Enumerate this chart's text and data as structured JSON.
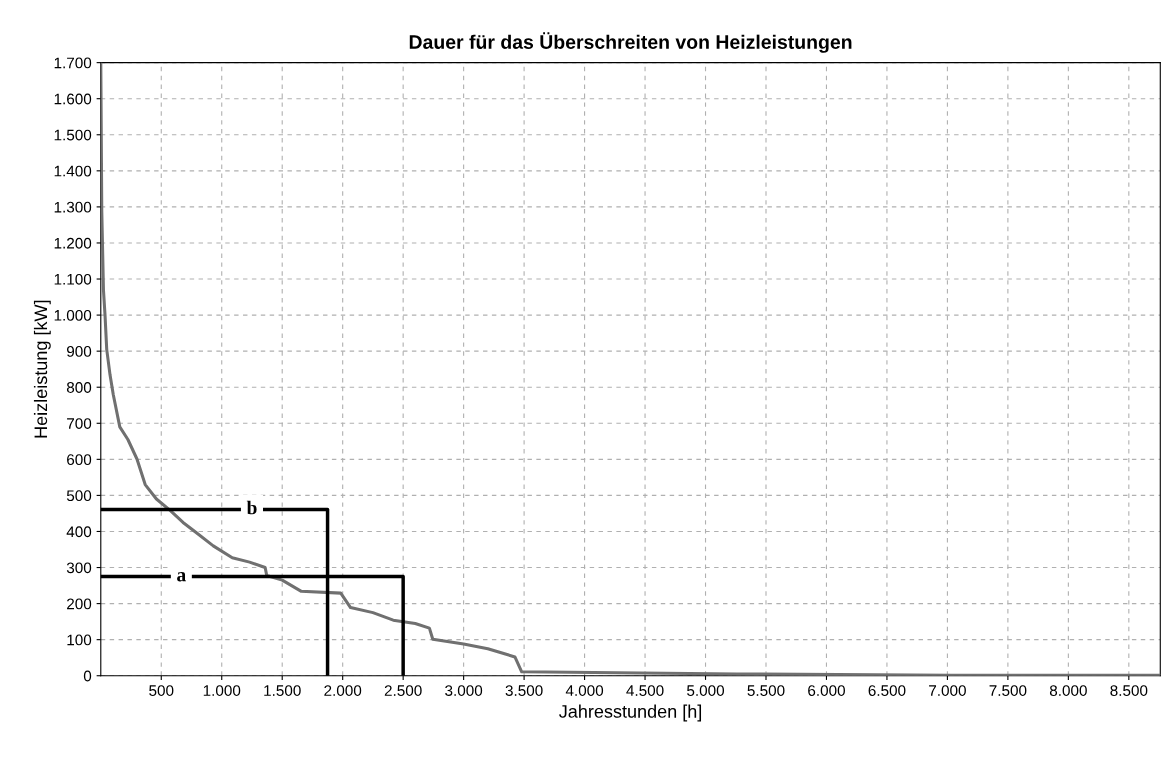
{
  "chart_data": {
    "type": "line",
    "title": "Dauer für das Überschreiten von Heizleistungen",
    "xlabel": "Jahresstunden [h]",
    "ylabel": "Heizleistung [kW]",
    "series": [
      {
        "color": "#707070",
        "x": [
          0,
          8,
          22,
          35,
          49,
          76,
          103,
          157,
          224,
          299,
          367,
          460,
          571,
          680,
          788,
          930,
          1087,
          1230,
          1359,
          1372,
          1500,
          1658,
          1984,
          2065,
          2250,
          2418,
          2600,
          2717,
          2745,
          3000,
          3200,
          3424,
          3480,
          5260,
          7030,
          8760
        ],
        "values": [
          1700,
          1290,
          1070,
          1000,
          905,
          835,
          780,
          690,
          655,
          601,
          530,
          490,
          459,
          425,
          397,
          360,
          327,
          315,
          300,
          278,
          265,
          234,
          229,
          189,
          175,
          154,
          145,
          132,
          101,
          88,
          75,
          52,
          11,
          5,
          1,
          1
        ]
      },
      {
        "color": "#000000",
        "x": [
          0,
          2500,
          2500
        ],
        "values": [
          275,
          275,
          0
        ]
      },
      {
        "color": "#000000",
        "x": [
          0,
          1875,
          1875
        ],
        "values": [
          461,
          461,
          0
        ]
      }
    ],
    "annotations": [
      {
        "text": "a",
        "x": 666,
        "y": 275
      },
      {
        "text": "b",
        "x": 1250,
        "y": 461
      }
    ],
    "xlim": [
      0,
      8760
    ],
    "ylim": [
      0,
      1700
    ],
    "xticks": [
      500,
      {
        "value": 1000,
        "label": "1.000"
      },
      {
        "value": 1500,
        "label": "1.500"
      },
      {
        "value": 2000,
        "label": "2.000"
      },
      {
        "value": 2500,
        "label": "2.500"
      },
      {
        "value": 3000,
        "label": "3.000"
      },
      {
        "value": 3500,
        "label": "3.500"
      },
      {
        "value": 4000,
        "label": "4.000"
      },
      {
        "value": 4500,
        "label": "4.500"
      },
      {
        "value": 5000,
        "label": "5.000"
      },
      {
        "value": 5500,
        "label": "5.500"
      },
      {
        "value": 6000,
        "label": "6.000"
      },
      {
        "value": 6500,
        "label": "6.500"
      },
      {
        "value": 7000,
        "label": "7.000"
      },
      {
        "value": 7500,
        "label": "7.500"
      },
      {
        "value": 8000,
        "label": "8.000"
      },
      {
        "value": 8500,
        "label": "8.500"
      }
    ],
    "yticks": [
      0,
      100,
      200,
      300,
      400,
      500,
      600,
      700,
      800,
      900,
      {
        "value": 1000,
        "label": "1.000"
      },
      {
        "value": 1100,
        "label": "1.100"
      },
      {
        "value": 1200,
        "label": "1.200"
      },
      {
        "value": 1300,
        "label": "1.300"
      },
      {
        "value": 1400,
        "label": "1.400"
      },
      {
        "value": 1500,
        "label": "1.500"
      },
      {
        "value": 1600,
        "label": "1.600"
      },
      {
        "value": 1700,
        "label": "1.700"
      }
    ],
    "grid": true,
    "legend": false,
    "marker": "none",
    "line_style": "solid"
  }
}
